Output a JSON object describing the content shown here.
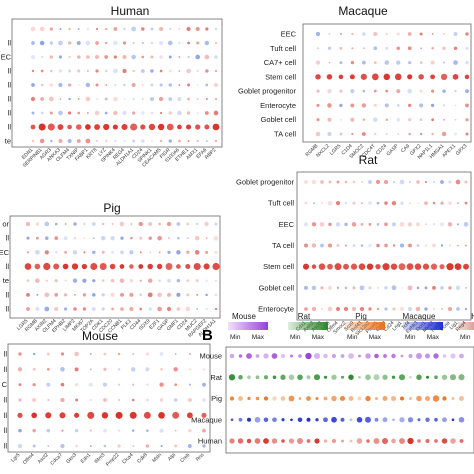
{
  "figure": {
    "panel_letter": "B",
    "colors": {
      "red": "#d73027",
      "blue": "#4a6fd6",
      "frame": "#666666"
    }
  },
  "chart_data": [
    {
      "type": "dotplot",
      "title": "Human",
      "rows": [
        "",
        "ll",
        "EC",
        "ll",
        "ll",
        "ll",
        "ll",
        "ll",
        "te"
      ],
      "columns": [
        "EDN1",
        "SERPINB1",
        "AGR3",
        "ANXA3",
        "OLFM4",
        "TXNIP",
        "FABP1",
        "KRT8",
        "LYZ",
        "SPINK4",
        "REG4",
        "ALDH1A1",
        "CD24",
        "SPINK1",
        "CEACAM5",
        "PIGR",
        "S100A6",
        "ETHE1",
        "AMX1",
        "EFA6",
        "RBP2"
      ],
      "highlight_row": 7
    },
    {
      "type": "dotplot",
      "title": "Macaque",
      "rows": [
        "EEC",
        "Tuft cell",
        "CA7+ cell",
        "Stem cell",
        "Goblet progenitor",
        "Enterocyte",
        "Goblet cell",
        "TA cell"
      ],
      "columns": [
        "RGMB",
        "NXCL2",
        "LGR5",
        "C1D4",
        "SMOC2",
        "CDC4T",
        "CD24",
        "GASP",
        "CA9",
        "GPX2",
        "NAP1L1",
        "HMGA1",
        "APEX1",
        "GPX3"
      ],
      "highlight_row": 3
    },
    {
      "type": "dotplot",
      "title": "Pig",
      "rows": [
        "or",
        "ll",
        "EC",
        "ll",
        "te",
        "ll",
        "ll"
      ],
      "columns": [
        "LGR5",
        "RGMB",
        "AXIN2",
        "OLFM4",
        "EPHB2",
        "LIMP2",
        "MKI67",
        "TOP2A",
        "CDK1",
        "CDC20",
        "CCNB1",
        "PLK1",
        "CD44",
        "SOX9",
        "E2F1",
        "GASP",
        "GMF1",
        "CD24",
        "MUC2",
        "RAPGEF2",
        "ALDH1A1"
      ],
      "highlight_row": 3
    },
    {
      "type": "dotplot",
      "title": "Rat",
      "rows": [
        "Goblet progenitor",
        "Tuft cell",
        "EEC",
        "TA cell",
        "Stem cell",
        "Goblet cell",
        "Enterocyte"
      ],
      "columns": [
        "Cdx1",
        "Axin2",
        "Ascl2",
        "Lgr5",
        "Olfm4",
        "Smoc2",
        "Sox9",
        "Rnf43",
        "Slc12a2",
        "Prom1",
        "Cd44",
        "Cd24",
        "Lrig1",
        "Tcf4",
        "Ephb3",
        "Dcn1",
        "Mki67",
        "Top2a",
        "Pcna",
        "Lig1",
        "Reg4"
      ],
      "highlight_row": 4
    },
    {
      "type": "dotplot",
      "title": "Mouse",
      "rows": [
        "ll",
        "ll",
        "C",
        "ll",
        "ll",
        "ll",
        "ll"
      ],
      "columns": [
        "Lgr5",
        "Olfm4",
        "Ascl2",
        "Cdca7",
        "Gkn3",
        "Edn1",
        "Ifitm3",
        "Pmp22",
        "Clca4",
        "Cdk8",
        "Msln",
        "Alpi",
        "Creb",
        "Rns"
      ],
      "highlight_row": 4
    },
    {
      "type": "dotplot",
      "title": "",
      "rows": [
        "Mouse",
        "Rat",
        "Pig",
        "Macaque",
        "Human"
      ],
      "columns": [],
      "legend": [
        {
          "name": "Mouse",
          "color": "#9b3fd6",
          "min": "Min",
          "max": "Max"
        },
        {
          "name": "Rat",
          "color": "#2a8a2a",
          "min": "Min",
          "max": "Max"
        },
        {
          "name": "Pig",
          "color": "#e8731e",
          "min": "Min",
          "max": "Max"
        },
        {
          "name": "Macaque",
          "color": "#1f2fd0",
          "min": "Min",
          "max": "Max"
        },
        {
          "name": "H",
          "color": "#c0392b",
          "min": "Min",
          "max": ""
        }
      ]
    }
  ]
}
